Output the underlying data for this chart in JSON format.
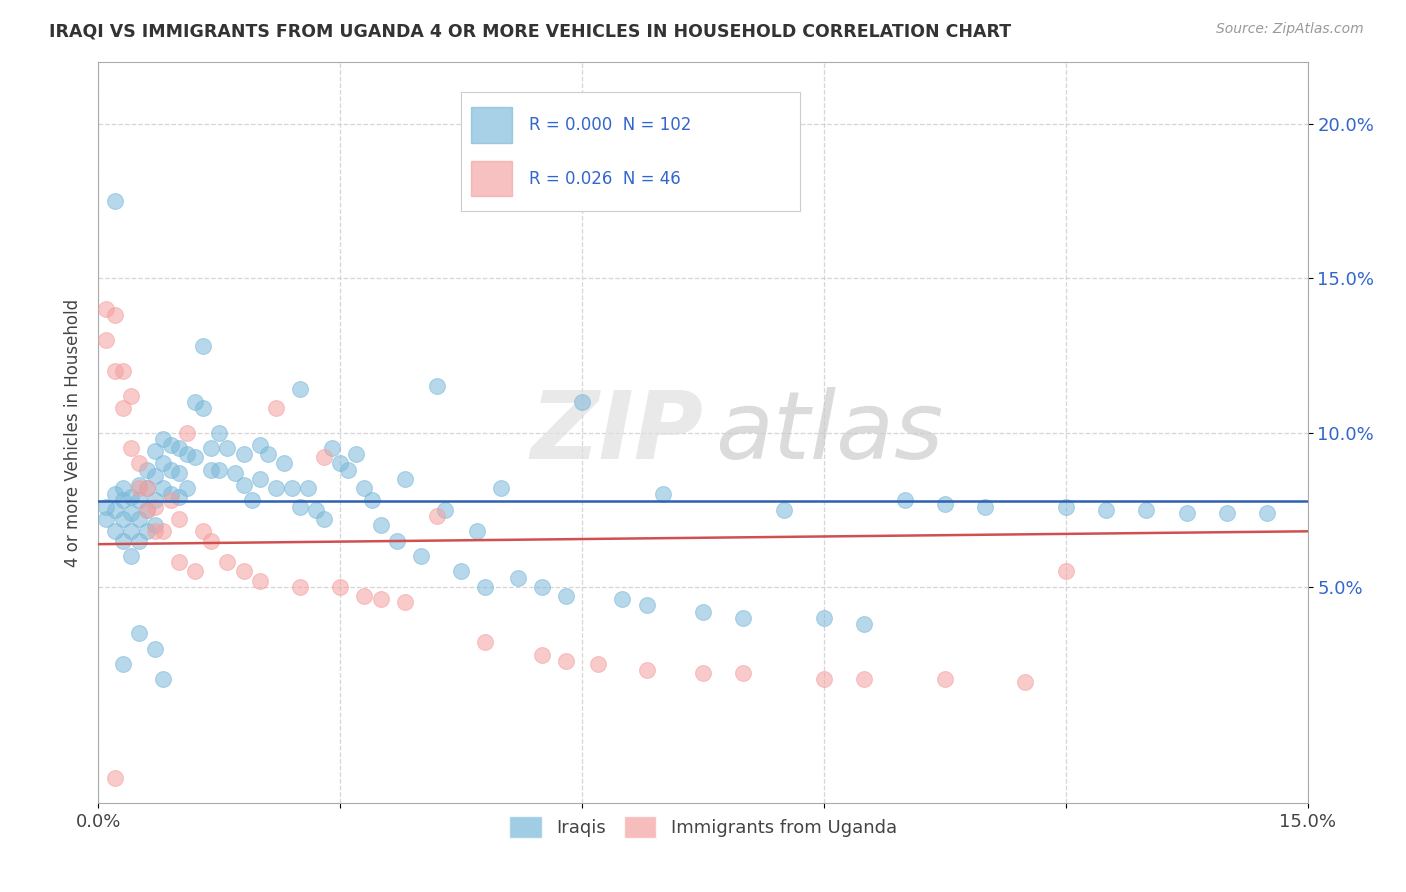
{
  "title": "IRAQI VS IMMIGRANTS FROM UGANDA 4 OR MORE VEHICLES IN HOUSEHOLD CORRELATION CHART",
  "source": "Source: ZipAtlas.com",
  "ylabel": "4 or more Vehicles in Household",
  "xlim": [
    0.0,
    0.15
  ],
  "ylim": [
    -0.02,
    0.22
  ],
  "xticks": [
    0.0,
    0.03,
    0.06,
    0.09,
    0.12,
    0.15
  ],
  "xtick_labels": [
    "0.0%",
    "",
    "",
    "",
    "",
    "15.0%"
  ],
  "yticks": [
    0.05,
    0.1,
    0.15,
    0.2
  ],
  "ytick_labels": [
    "5.0%",
    "10.0%",
    "15.0%",
    "20.0%"
  ],
  "legend_labels": [
    "Iraqis",
    "Immigrants from Uganda"
  ],
  "blue_color": "#7ab8d9",
  "pink_color": "#f4a0a0",
  "blue_line_color": "#3060b0",
  "pink_line_color": "#d05050",
  "r_blue": "0.000",
  "n_blue": "102",
  "r_pink": "0.026",
  "n_pink": "46",
  "blue_points_x": [
    0.001,
    0.001,
    0.002,
    0.002,
    0.002,
    0.003,
    0.003,
    0.003,
    0.003,
    0.004,
    0.004,
    0.004,
    0.005,
    0.005,
    0.005,
    0.005,
    0.006,
    0.006,
    0.006,
    0.006,
    0.007,
    0.007,
    0.007,
    0.007,
    0.008,
    0.008,
    0.008,
    0.009,
    0.009,
    0.009,
    0.01,
    0.01,
    0.01,
    0.011,
    0.011,
    0.012,
    0.012,
    0.013,
    0.013,
    0.014,
    0.014,
    0.015,
    0.015,
    0.016,
    0.017,
    0.018,
    0.018,
    0.019,
    0.02,
    0.02,
    0.021,
    0.022,
    0.023,
    0.024,
    0.025,
    0.025,
    0.026,
    0.027,
    0.028,
    0.029,
    0.03,
    0.031,
    0.032,
    0.033,
    0.034,
    0.035,
    0.037,
    0.038,
    0.04,
    0.042,
    0.043,
    0.045,
    0.047,
    0.048,
    0.05,
    0.052,
    0.055,
    0.058,
    0.06,
    0.065,
    0.068,
    0.07,
    0.075,
    0.08,
    0.085,
    0.09,
    0.095,
    0.1,
    0.105,
    0.11,
    0.12,
    0.125,
    0.13,
    0.135,
    0.14,
    0.145,
    0.002,
    0.003,
    0.004,
    0.005,
    0.007,
    0.008
  ],
  "blue_points_y": [
    0.076,
    0.072,
    0.08,
    0.075,
    0.068,
    0.082,
    0.078,
    0.072,
    0.065,
    0.079,
    0.074,
    0.068,
    0.083,
    0.078,
    0.072,
    0.065,
    0.088,
    0.082,
    0.075,
    0.068,
    0.094,
    0.086,
    0.078,
    0.07,
    0.098,
    0.09,
    0.082,
    0.096,
    0.088,
    0.08,
    0.095,
    0.087,
    0.079,
    0.093,
    0.082,
    0.092,
    0.11,
    0.128,
    0.108,
    0.095,
    0.088,
    0.1,
    0.088,
    0.095,
    0.087,
    0.093,
    0.083,
    0.078,
    0.096,
    0.085,
    0.093,
    0.082,
    0.09,
    0.082,
    0.076,
    0.114,
    0.082,
    0.075,
    0.072,
    0.095,
    0.09,
    0.088,
    0.093,
    0.082,
    0.078,
    0.07,
    0.065,
    0.085,
    0.06,
    0.115,
    0.075,
    0.055,
    0.068,
    0.05,
    0.082,
    0.053,
    0.05,
    0.047,
    0.11,
    0.046,
    0.044,
    0.08,
    0.042,
    0.04,
    0.075,
    0.04,
    0.038,
    0.078,
    0.077,
    0.076,
    0.076,
    0.075,
    0.075,
    0.074,
    0.074,
    0.074,
    0.175,
    0.025,
    0.06,
    0.035,
    0.03,
    0.02
  ],
  "pink_points_x": [
    0.001,
    0.001,
    0.002,
    0.002,
    0.003,
    0.003,
    0.004,
    0.004,
    0.005,
    0.005,
    0.006,
    0.006,
    0.007,
    0.007,
    0.008,
    0.009,
    0.01,
    0.01,
    0.011,
    0.012,
    0.013,
    0.014,
    0.016,
    0.018,
    0.02,
    0.022,
    0.025,
    0.028,
    0.03,
    0.033,
    0.035,
    0.038,
    0.042,
    0.048,
    0.055,
    0.058,
    0.062,
    0.068,
    0.075,
    0.08,
    0.09,
    0.095,
    0.105,
    0.115,
    0.12,
    0.002
  ],
  "pink_points_y": [
    0.14,
    0.13,
    0.138,
    0.12,
    0.12,
    0.108,
    0.112,
    0.095,
    0.09,
    0.082,
    0.082,
    0.075,
    0.076,
    0.068,
    0.068,
    0.078,
    0.072,
    0.058,
    0.1,
    0.055,
    0.068,
    0.065,
    0.058,
    0.055,
    0.052,
    0.108,
    0.05,
    0.092,
    0.05,
    0.047,
    0.046,
    0.045,
    0.073,
    0.032,
    0.028,
    0.026,
    0.025,
    0.023,
    0.022,
    0.022,
    0.02,
    0.02,
    0.02,
    0.019,
    0.055,
    -0.012
  ]
}
